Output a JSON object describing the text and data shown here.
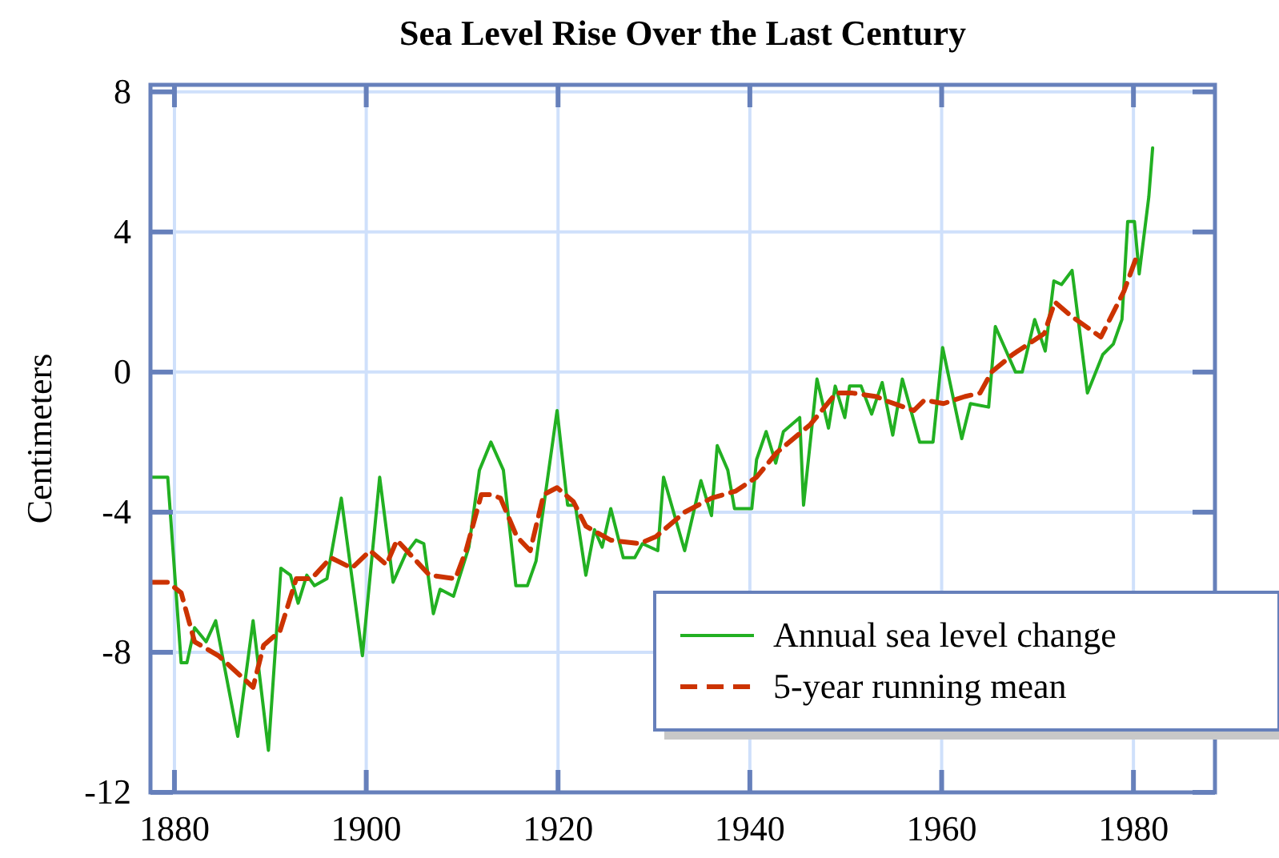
{
  "chart_data": {
    "type": "line",
    "title": "Sea Level Rise Over the Last Century",
    "ylabel": "Centimeters",
    "xlim": [
      1877.5,
      1988.5
    ],
    "xticks": [
      1880,
      1900,
      1920,
      1940,
      1960,
      1980
    ],
    "ylim": [
      -12,
      8.2
    ],
    "yticks": [
      -12,
      -8,
      -4,
      0,
      4,
      8
    ],
    "grid": true,
    "legend": "bottom right",
    "series": [
      {
        "name": "Annual sea level change",
        "color": "#22b022",
        "line_style": "solid",
        "x": [
          1877.6,
          1879.3,
          1880.7,
          1881.3,
          1882.1,
          1883.3,
          1884.3,
          1886.6,
          1888.2,
          1889.8,
          1891.1,
          1892.1,
          1892.9,
          1893.8,
          1894.6,
          1895.9,
          1897.4,
          1899.6,
          1901.4,
          1902.8,
          1904.1,
          1905.2,
          1906,
          1907,
          1907.7,
          1909.1,
          1910.7,
          1911.8,
          1913,
          1914.3,
          1915.6,
          1916.8,
          1917.7,
          1919.9,
          1921,
          1921.8,
          1922.9,
          1923.8,
          1924.6,
          1925.5,
          1926.8,
          1928,
          1928.8,
          1930.4,
          1931,
          1933.2,
          1934.9,
          1936,
          1936.6,
          1937.7,
          1938.4,
          1940.2,
          1940.7,
          1941.7,
          1942.7,
          1943.5,
          1945.2,
          1945.6,
          1947,
          1948.2,
          1948.9,
          1949.9,
          1950.4,
          1951.6,
          1952.7,
          1953.8,
          1954.9,
          1955.9,
          1957.7,
          1959.1,
          1960.1,
          1962.1,
          1963,
          1964.9,
          1965.6,
          1967.7,
          1968.4,
          1969.7,
          1970.8,
          1971.7,
          1972.5,
          1973.6,
          1975.2,
          1976.8,
          1977.9,
          1978.8,
          1979.4,
          1980.1,
          1980.6,
          1981.6,
          1982
        ],
        "values": [
          -3,
          -3,
          -8.3,
          -8.3,
          -7.3,
          -7.7,
          -7.1,
          -10.4,
          -7.1,
          -10.8,
          -5.6,
          -5.8,
          -6.6,
          -5.8,
          -6.1,
          -5.9,
          -3.6,
          -8.1,
          -3,
          -6,
          -5.2,
          -4.8,
          -4.9,
          -6.9,
          -6.2,
          -6.4,
          -5,
          -2.8,
          -2,
          -2.8,
          -6.1,
          -6.1,
          -5.4,
          -1.1,
          -3.8,
          -3.8,
          -5.8,
          -4.5,
          -5,
          -3.9,
          -5.3,
          -5.3,
          -4.9,
          -5.1,
          -3,
          -5.1,
          -3.1,
          -4.1,
          -2.1,
          -2.8,
          -3.9,
          -3.9,
          -2.5,
          -1.7,
          -2.6,
          -1.7,
          -1.3,
          -3.8,
          -0.2,
          -1.6,
          -0.4,
          -1.3,
          -0.4,
          -0.4,
          -1.2,
          -0.3,
          -1.8,
          -0.2,
          -2,
          -2,
          0.7,
          -1.9,
          -0.9,
          -1,
          1.3,
          0,
          0,
          1.5,
          0.6,
          2.6,
          2.5,
          2.9,
          -0.6,
          0.5,
          0.8,
          1.5,
          4.3,
          4.3,
          2.8,
          5,
          6.4
        ]
      },
      {
        "name": "5-year running mean",
        "color": "#cc3300",
        "line_style": "dashed",
        "x": [
          1877.6,
          1879.3,
          1880.7,
          1882.1,
          1884.6,
          1888.2,
          1889.3,
          1891,
          1892.7,
          1894.3,
          1896.3,
          1898.5,
          1900.4,
          1902.1,
          1903.2,
          1904.9,
          1906.6,
          1909.3,
          1910.4,
          1912,
          1913,
          1914,
          1915.7,
          1917.1,
          1918.5,
          1919.9,
          1921.6,
          1922.9,
          1925.5,
          1928.5,
          1930.2,
          1933.2,
          1936,
          1938.5,
          1940.7,
          1942.8,
          1946.3,
          1949,
          1950.7,
          1953.2,
          1954,
          1957.1,
          1958.2,
          1960.2,
          1962.4,
          1964,
          1965.2,
          1967.4,
          1970.7,
          1971.8,
          1973.5,
          1976.6,
          1979,
          1980.2
        ],
        "values": [
          -6,
          -6,
          -6.3,
          -7.7,
          -8.1,
          -9,
          -7.8,
          -7.4,
          -5.9,
          -5.9,
          -5.3,
          -5.6,
          -5.1,
          -5.5,
          -4.8,
          -5.3,
          -5.8,
          -5.9,
          -5.1,
          -3.5,
          -3.5,
          -3.6,
          -4.7,
          -5.1,
          -3.5,
          -3.3,
          -3.7,
          -4.4,
          -4.8,
          -4.9,
          -4.7,
          -4,
          -3.6,
          -3.4,
          -3,
          -2.3,
          -1.5,
          -0.6,
          -0.6,
          -0.7,
          -0.8,
          -1.1,
          -0.8,
          -0.9,
          -0.7,
          -0.6,
          0,
          0.5,
          1.1,
          2,
          1.6,
          1,
          2.3,
          3.2
        ]
      }
    ]
  }
}
